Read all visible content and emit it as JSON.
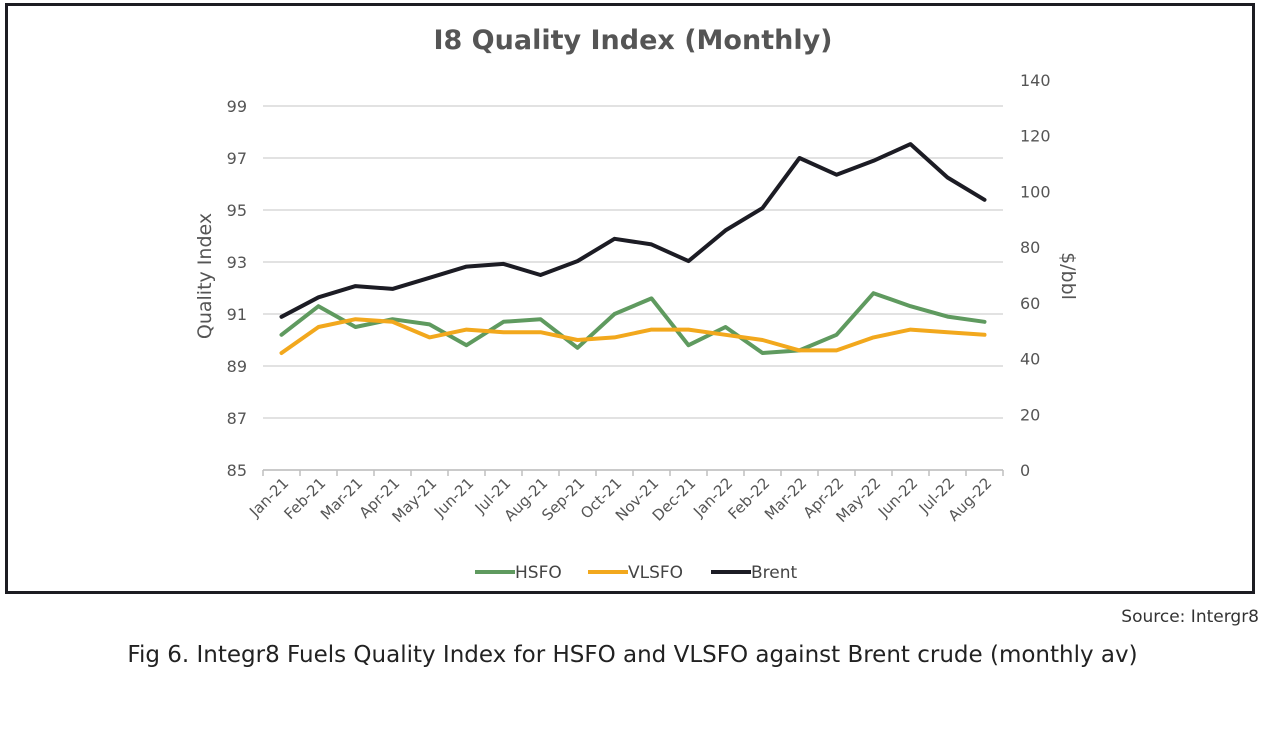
{
  "chart_data": {
    "type": "line",
    "title": "I8 Quality Index (Monthly)",
    "ylabel_left": "Quality Index",
    "ylabel_right": "$/bbl",
    "categories": [
      "Jan-21",
      "Feb-21",
      "Mar-21",
      "Apr-21",
      "May-21",
      "Jun-21",
      "Jul-21",
      "Aug-21",
      "Sep-21",
      "Oct-21",
      "Nov-21",
      "Dec-21",
      "Jan-22",
      "Feb-22",
      "Mar-22",
      "Apr-22",
      "May-22",
      "Jun-22",
      "Jul-22",
      "Aug-22"
    ],
    "ylim_left": [
      85,
      99
    ],
    "yticks_left": [
      "85",
      "87",
      "89",
      "91",
      "93",
      "95",
      "97",
      "99"
    ],
    "ylim_right": [
      0,
      140
    ],
    "yticks_right": [
      "0",
      "20",
      "40",
      "60",
      "80",
      "100",
      "120",
      "140"
    ],
    "grid": true,
    "legend_position": "bottom",
    "series": [
      {
        "name": "HSFO",
        "axis": "left",
        "color": "#5f9a5f",
        "values": [
          90.2,
          91.3,
          90.5,
          90.8,
          90.6,
          89.8,
          90.7,
          90.8,
          89.7,
          91.0,
          91.6,
          89.8,
          90.5,
          89.5,
          89.6,
          90.2,
          91.8,
          91.3,
          90.9,
          90.7
        ]
      },
      {
        "name": "VLSFO",
        "axis": "left",
        "color": "#f2a81d",
        "values": [
          89.5,
          90.5,
          90.8,
          90.7,
          90.1,
          90.4,
          90.3,
          90.3,
          90.0,
          90.1,
          90.4,
          90.4,
          90.2,
          90.0,
          89.6,
          89.6,
          90.1,
          90.4,
          90.3,
          90.2
        ]
      },
      {
        "name": "Brent",
        "axis": "right",
        "color": "#1c1c24",
        "values": [
          55,
          62,
          66,
          65,
          69,
          73,
          74,
          70,
          75,
          83,
          81,
          75,
          86,
          94,
          112,
          106,
          111,
          117,
          105,
          97
        ]
      }
    ]
  },
  "source": "Source: Intergr8",
  "caption": "Fig 6. Integr8 Fuels Quality Index for HSFO and VLSFO against Brent crude (monthly av)"
}
